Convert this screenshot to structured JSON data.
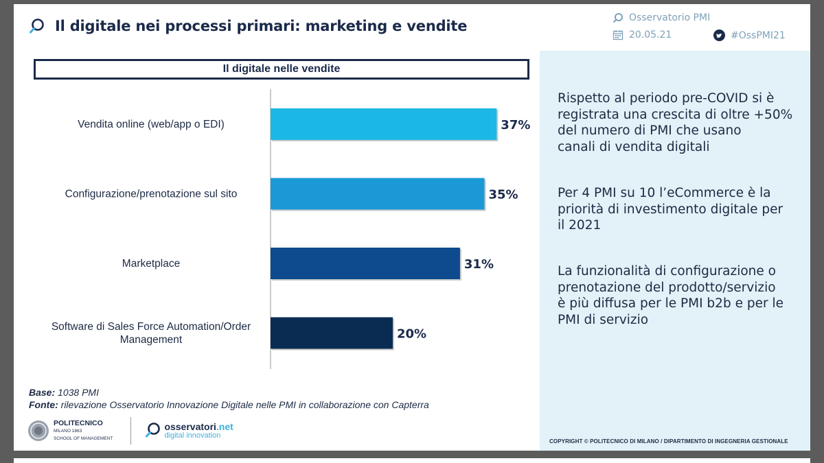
{
  "header": {
    "title": "Il digitale nei processi primari: marketing e vendite",
    "organization": "Osservatorio PMI",
    "date": "20.05.21",
    "hashtag": "#OssPMI21"
  },
  "chart_data": {
    "type": "bar",
    "orientation": "horizontal",
    "title": "Il digitale nelle vendite",
    "categories": [
      [
        "Vendita online (web/app o EDI)"
      ],
      [
        "Configurazione/prenotazione sul sito"
      ],
      [
        "Marketplace"
      ],
      [
        "Software di Sales Force Automation/Order",
        "Management"
      ]
    ],
    "values": [
      37,
      35,
      31,
      20
    ],
    "value_labels": [
      "37%",
      "35%",
      "31%",
      "20%"
    ],
    "colors": [
      "#1bb8e5",
      "#1a99d6",
      "#0d4a8e",
      "#0a2c52"
    ],
    "xlim": [
      0,
      40
    ],
    "unit": "%"
  },
  "insights": [
    [
      "Rispetto al periodo pre-COVID si è",
      "registrata una crescita di oltre +50%",
      "del numero di PMI che usano",
      "canali di vendita digitali"
    ],
    [
      "Per 4 PMI su 10 l’eCommerce è la",
      "priorità di investimento digitale per",
      "il 2021"
    ],
    [
      "La funzionalità di configurazione o",
      "prenotazione del prodotto/servizio",
      "è più diffusa per le PMI b2b e per le",
      "PMI di servizio"
    ]
  ],
  "notes": {
    "base_label": "Base:",
    "base_value": "1038 PMI",
    "source_label": "Fonte:",
    "source_value": "rilevazione Osservatorio Innovazione Digitale nelle PMI in collaborazione con Capterra"
  },
  "logos": {
    "poli_name": "POLITECNICO",
    "poli_city": "MILANO 1863",
    "poli_school": "SCHOOL OF MANAGEMENT",
    "oss_name": "osservatori",
    "oss_tld": ".net",
    "oss_sub": "digital innovation"
  },
  "copyright": "COPYRIGHT © POLITECNICO DI MILANO / DIPARTIMENTO DI INGEGNERIA GESTIONALE"
}
